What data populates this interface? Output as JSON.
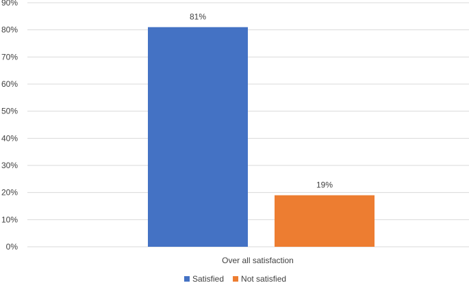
{
  "chart_data": {
    "type": "bar",
    "categories": [
      "Over all satisfaction"
    ],
    "series": [
      {
        "name": "Satisfied",
        "values": [
          0.81
        ],
        "label": "81%",
        "color": "#4472C4"
      },
      {
        "name": "Not satisfied",
        "values": [
          0.19
        ],
        "label": "19%",
        "color": "#ED7D31"
      }
    ],
    "ylim": [
      0,
      0.9
    ],
    "yticks": [
      "0%",
      "10%",
      "20%",
      "30%",
      "40%",
      "50%",
      "60%",
      "70%",
      "80%",
      "90%"
    ],
    "grid": true,
    "legend": "bottom",
    "title": "",
    "xlabel": "",
    "ylabel": ""
  }
}
